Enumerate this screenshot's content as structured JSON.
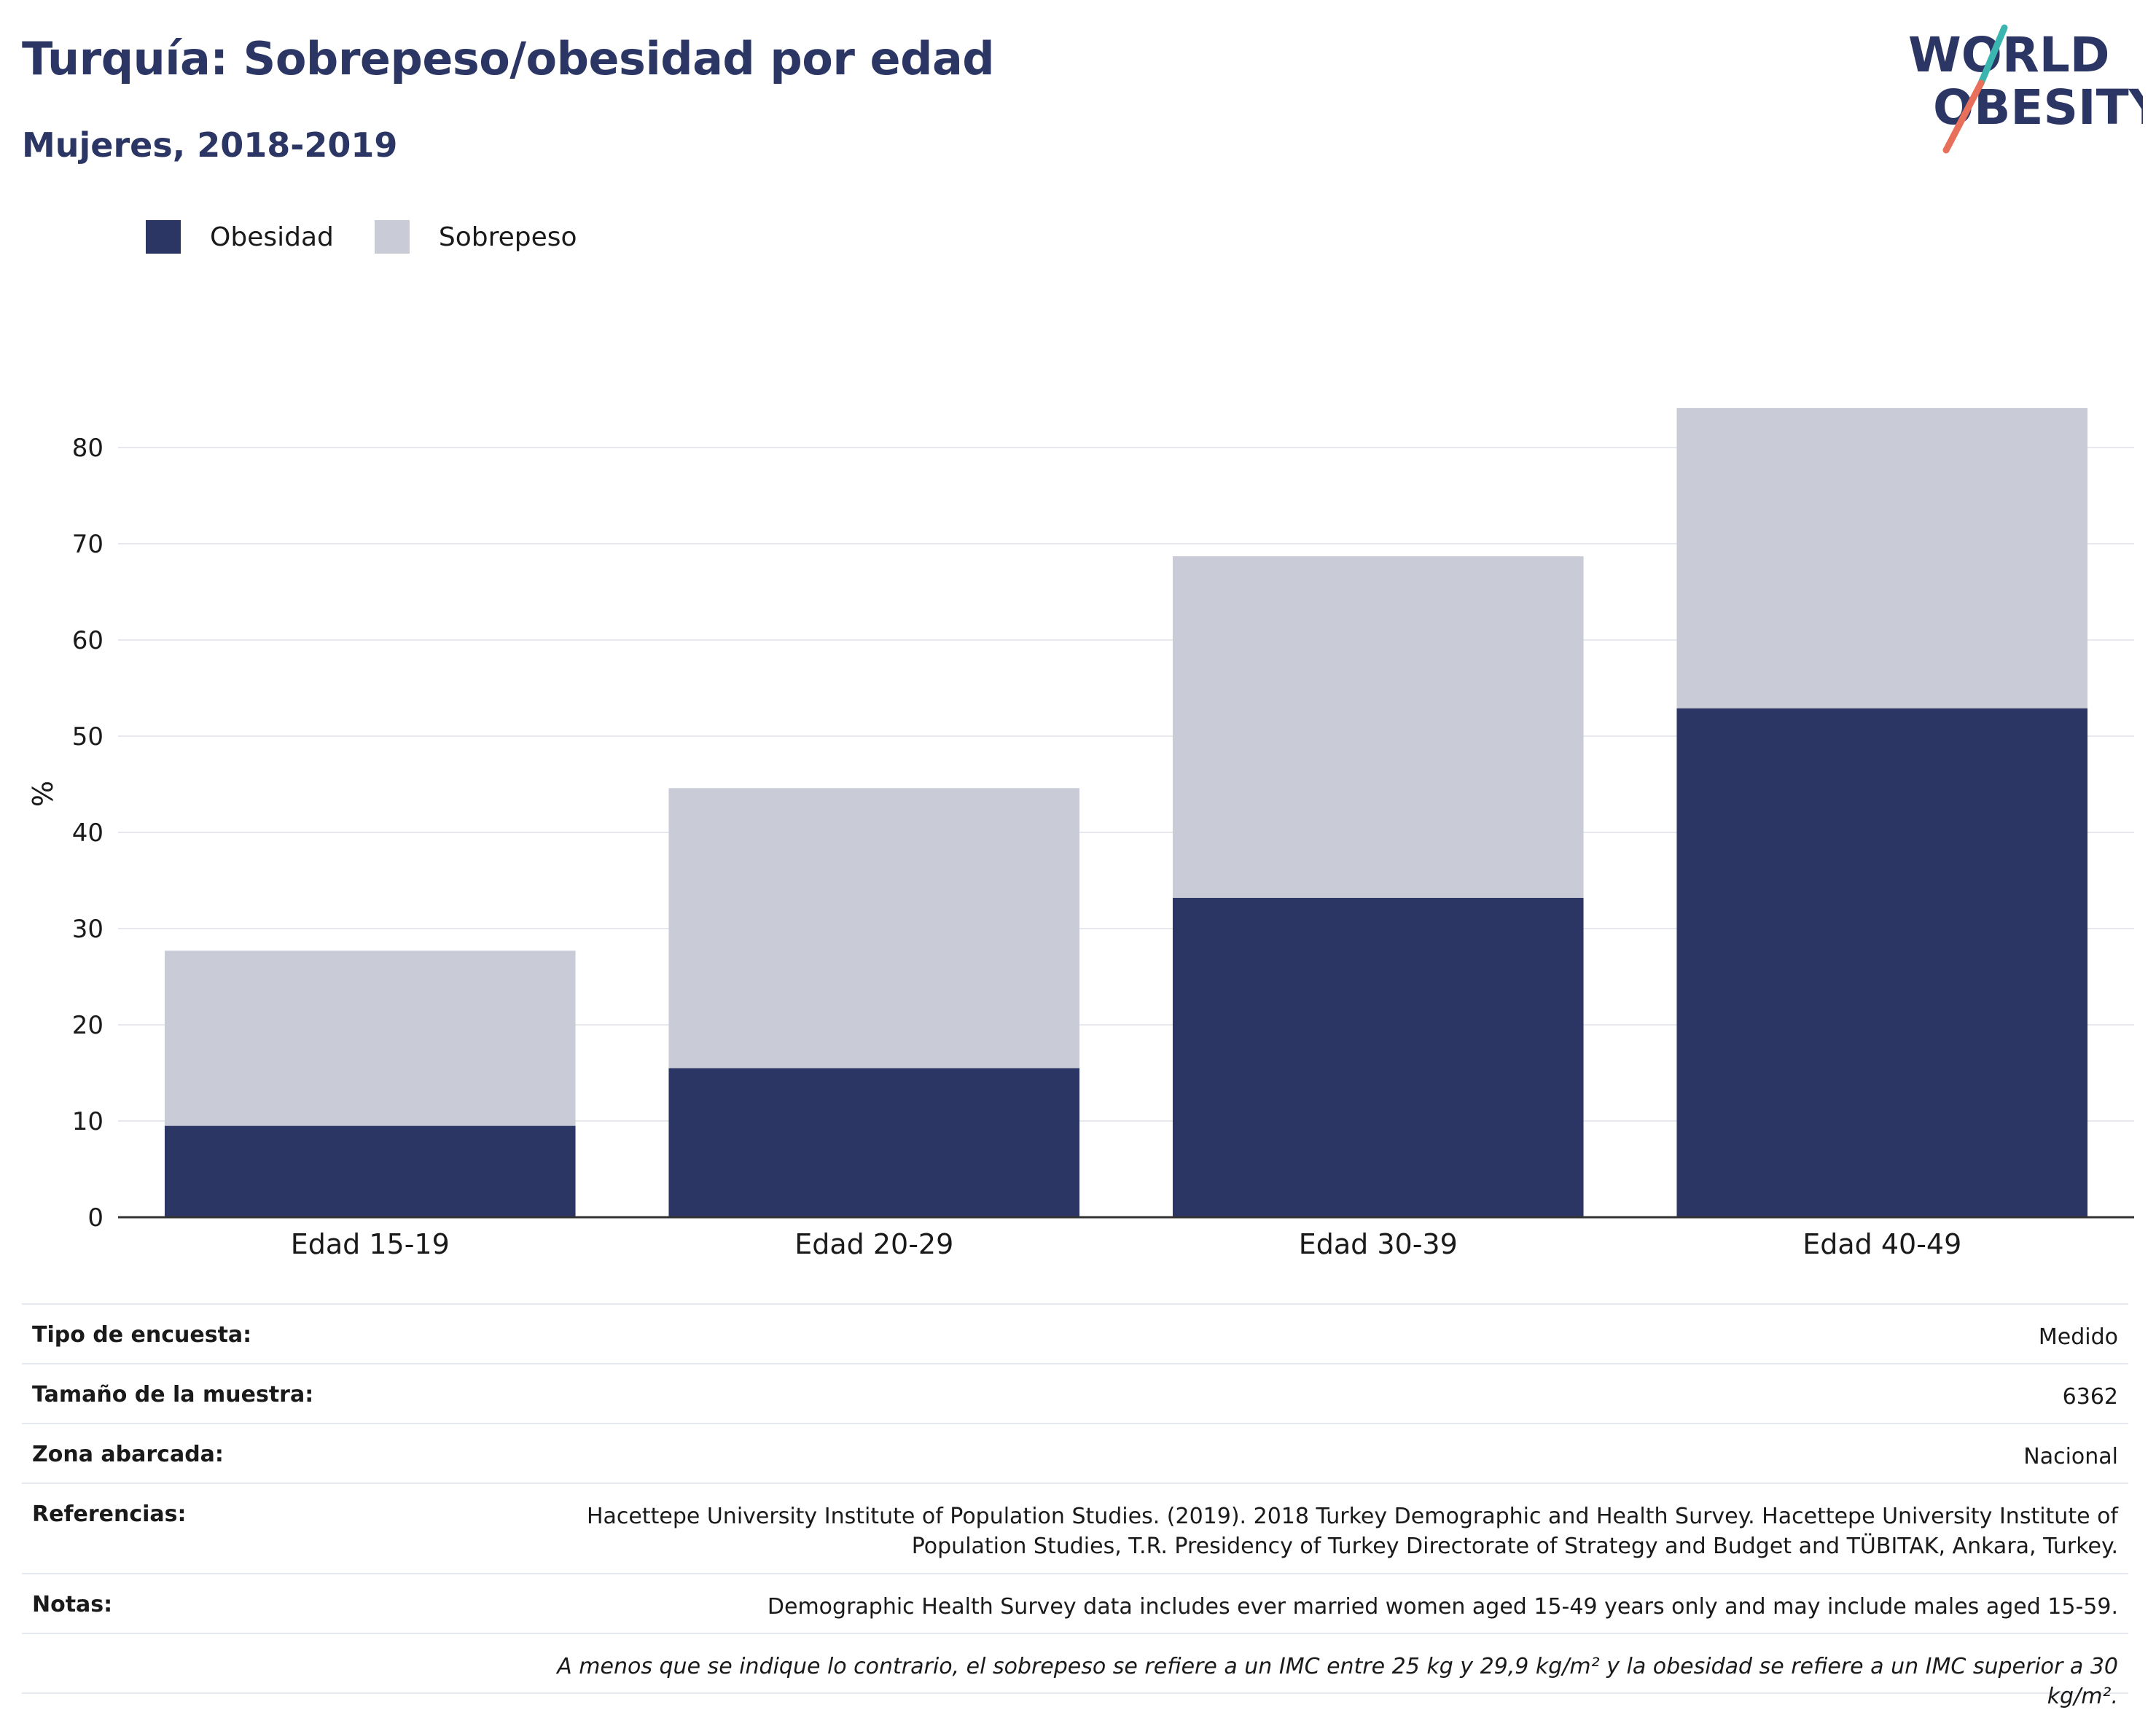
{
  "header": {
    "title": "Turquía: Sobrepeso/obesidad por edad",
    "subtitle": "Mujeres, 2018-2019"
  },
  "logo": {
    "line1": "WORLD",
    "line2": "OBESITY",
    "accent_teal": "#3ab5b0",
    "accent_coral": "#e8705a"
  },
  "legend": [
    {
      "label": "Obesidad",
      "color": "#2b3664"
    },
    {
      "label": "Sobrepeso",
      "color": "#c9cbd6"
    }
  ],
  "chart_data": {
    "type": "bar",
    "stacked": true,
    "categories": [
      "Edad 15-19",
      "Edad 20-29",
      "Edad 30-39",
      "Edad 40-49"
    ],
    "series": [
      {
        "name": "Obesidad",
        "values": [
          9.5,
          15.5,
          33.2,
          52.9
        ],
        "color": "#2b3664"
      },
      {
        "name": "Sobrepeso",
        "values": [
          18.2,
          29.1,
          35.5,
          31.2
        ],
        "color": "#c9cbd6"
      }
    ],
    "ylabel": "%",
    "ylim": [
      0,
      85
    ],
    "yticks": [
      0,
      10,
      20,
      30,
      40,
      50,
      60,
      70,
      80
    ],
    "grid": true,
    "legend_position": "top-left"
  },
  "info": {
    "rows": [
      {
        "key": "Tipo de encuesta:",
        "value": "Medido"
      },
      {
        "key": "Tamaño de la muestra:",
        "value": "6362"
      },
      {
        "key": "Zona abarcada:",
        "value": "Nacional"
      },
      {
        "key": "Referencias:",
        "value": "Hacettepe University Institute of Population Studies. (2019). 2018 Turkey Demographic and Health Survey. Hacettepe University Institute of Population Studies, T.R. Presidency of Turkey Directorate of Strategy and Budget and TÜBITAK, Ankara, Turkey."
      },
      {
        "key": "Notas:",
        "value": "Demographic Health Survey data includes ever married women aged 15-49 years only and may include males aged 15-59."
      }
    ],
    "footnote": "A menos que se indique lo contrario, el sobrepeso se refiere a un IMC entre 25 kg y 29,9 kg/m² y la obesidad se refiere a un IMC superior a 30 kg/m²."
  }
}
